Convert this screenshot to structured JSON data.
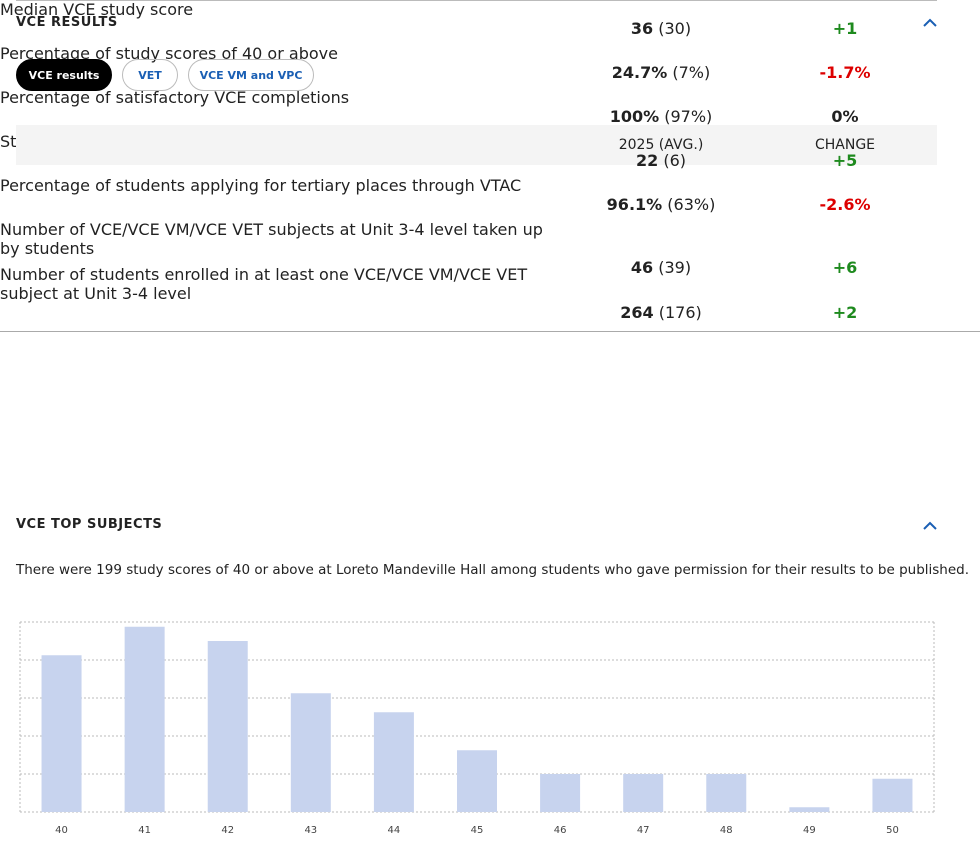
{
  "header": {
    "title": "VCE RESULTS"
  },
  "tabs": [
    "VCE results",
    "VET",
    "VCE VM and VPC"
  ],
  "table": {
    "columns": [
      "2025 (AVG.)",
      "CHANGE"
    ],
    "rows": [
      {
        "label": "Median VCE study score",
        "value": "36",
        "avg": "(30)",
        "change": "+1"
      },
      {
        "label": "Percentage of study scores of 40 or above",
        "value": "24.7%",
        "avg": "(7%)",
        "change": "-1.7%"
      },
      {
        "label": "Percentage of satisfactory VCE completions",
        "value": "100%",
        "avg": "(97%)",
        "change": "0%"
      },
      {
        "label": "Students awarded the VCE (Baccalaureate)",
        "value": "22",
        "avg": "(6)",
        "change": "+5"
      },
      {
        "label": "Percentage of students applying for tertiary places through VTAC",
        "value": "96.1%",
        "avg": "(63%)",
        "change": "-2.6%"
      },
      {
        "label": "Number of VCE/VCE VM/VCE VET subjects at Unit 3-4 level taken up by students",
        "value": "46",
        "avg": "(39)",
        "change": "+6"
      },
      {
        "label": "Number of students enrolled in at least one VCE/VCE VM/VCE VET subject at Unit 3-4 level",
        "value": "264",
        "avg": "(176)",
        "change": "+2"
      }
    ]
  },
  "subjects": {
    "title": "VCE TOP SUBJECTS",
    "text": "There were 199 study scores of 40 or above at Loreto Mandeville Hall among students who gave permission for their results to be published."
  },
  "chart_data": {
    "type": "bar",
    "categories": [
      "40",
      "41",
      "42",
      "43",
      "44",
      "45",
      "46",
      "47",
      "48",
      "49",
      "50"
    ],
    "values": [
      33,
      39,
      36,
      25,
      21,
      13,
      8,
      8,
      8,
      1,
      7
    ],
    "color": "#c7d3ee",
    "ylim": [
      0,
      40
    ],
    "yticks": [
      0,
      8,
      16,
      24,
      32,
      40
    ],
    "grid": true
  }
}
